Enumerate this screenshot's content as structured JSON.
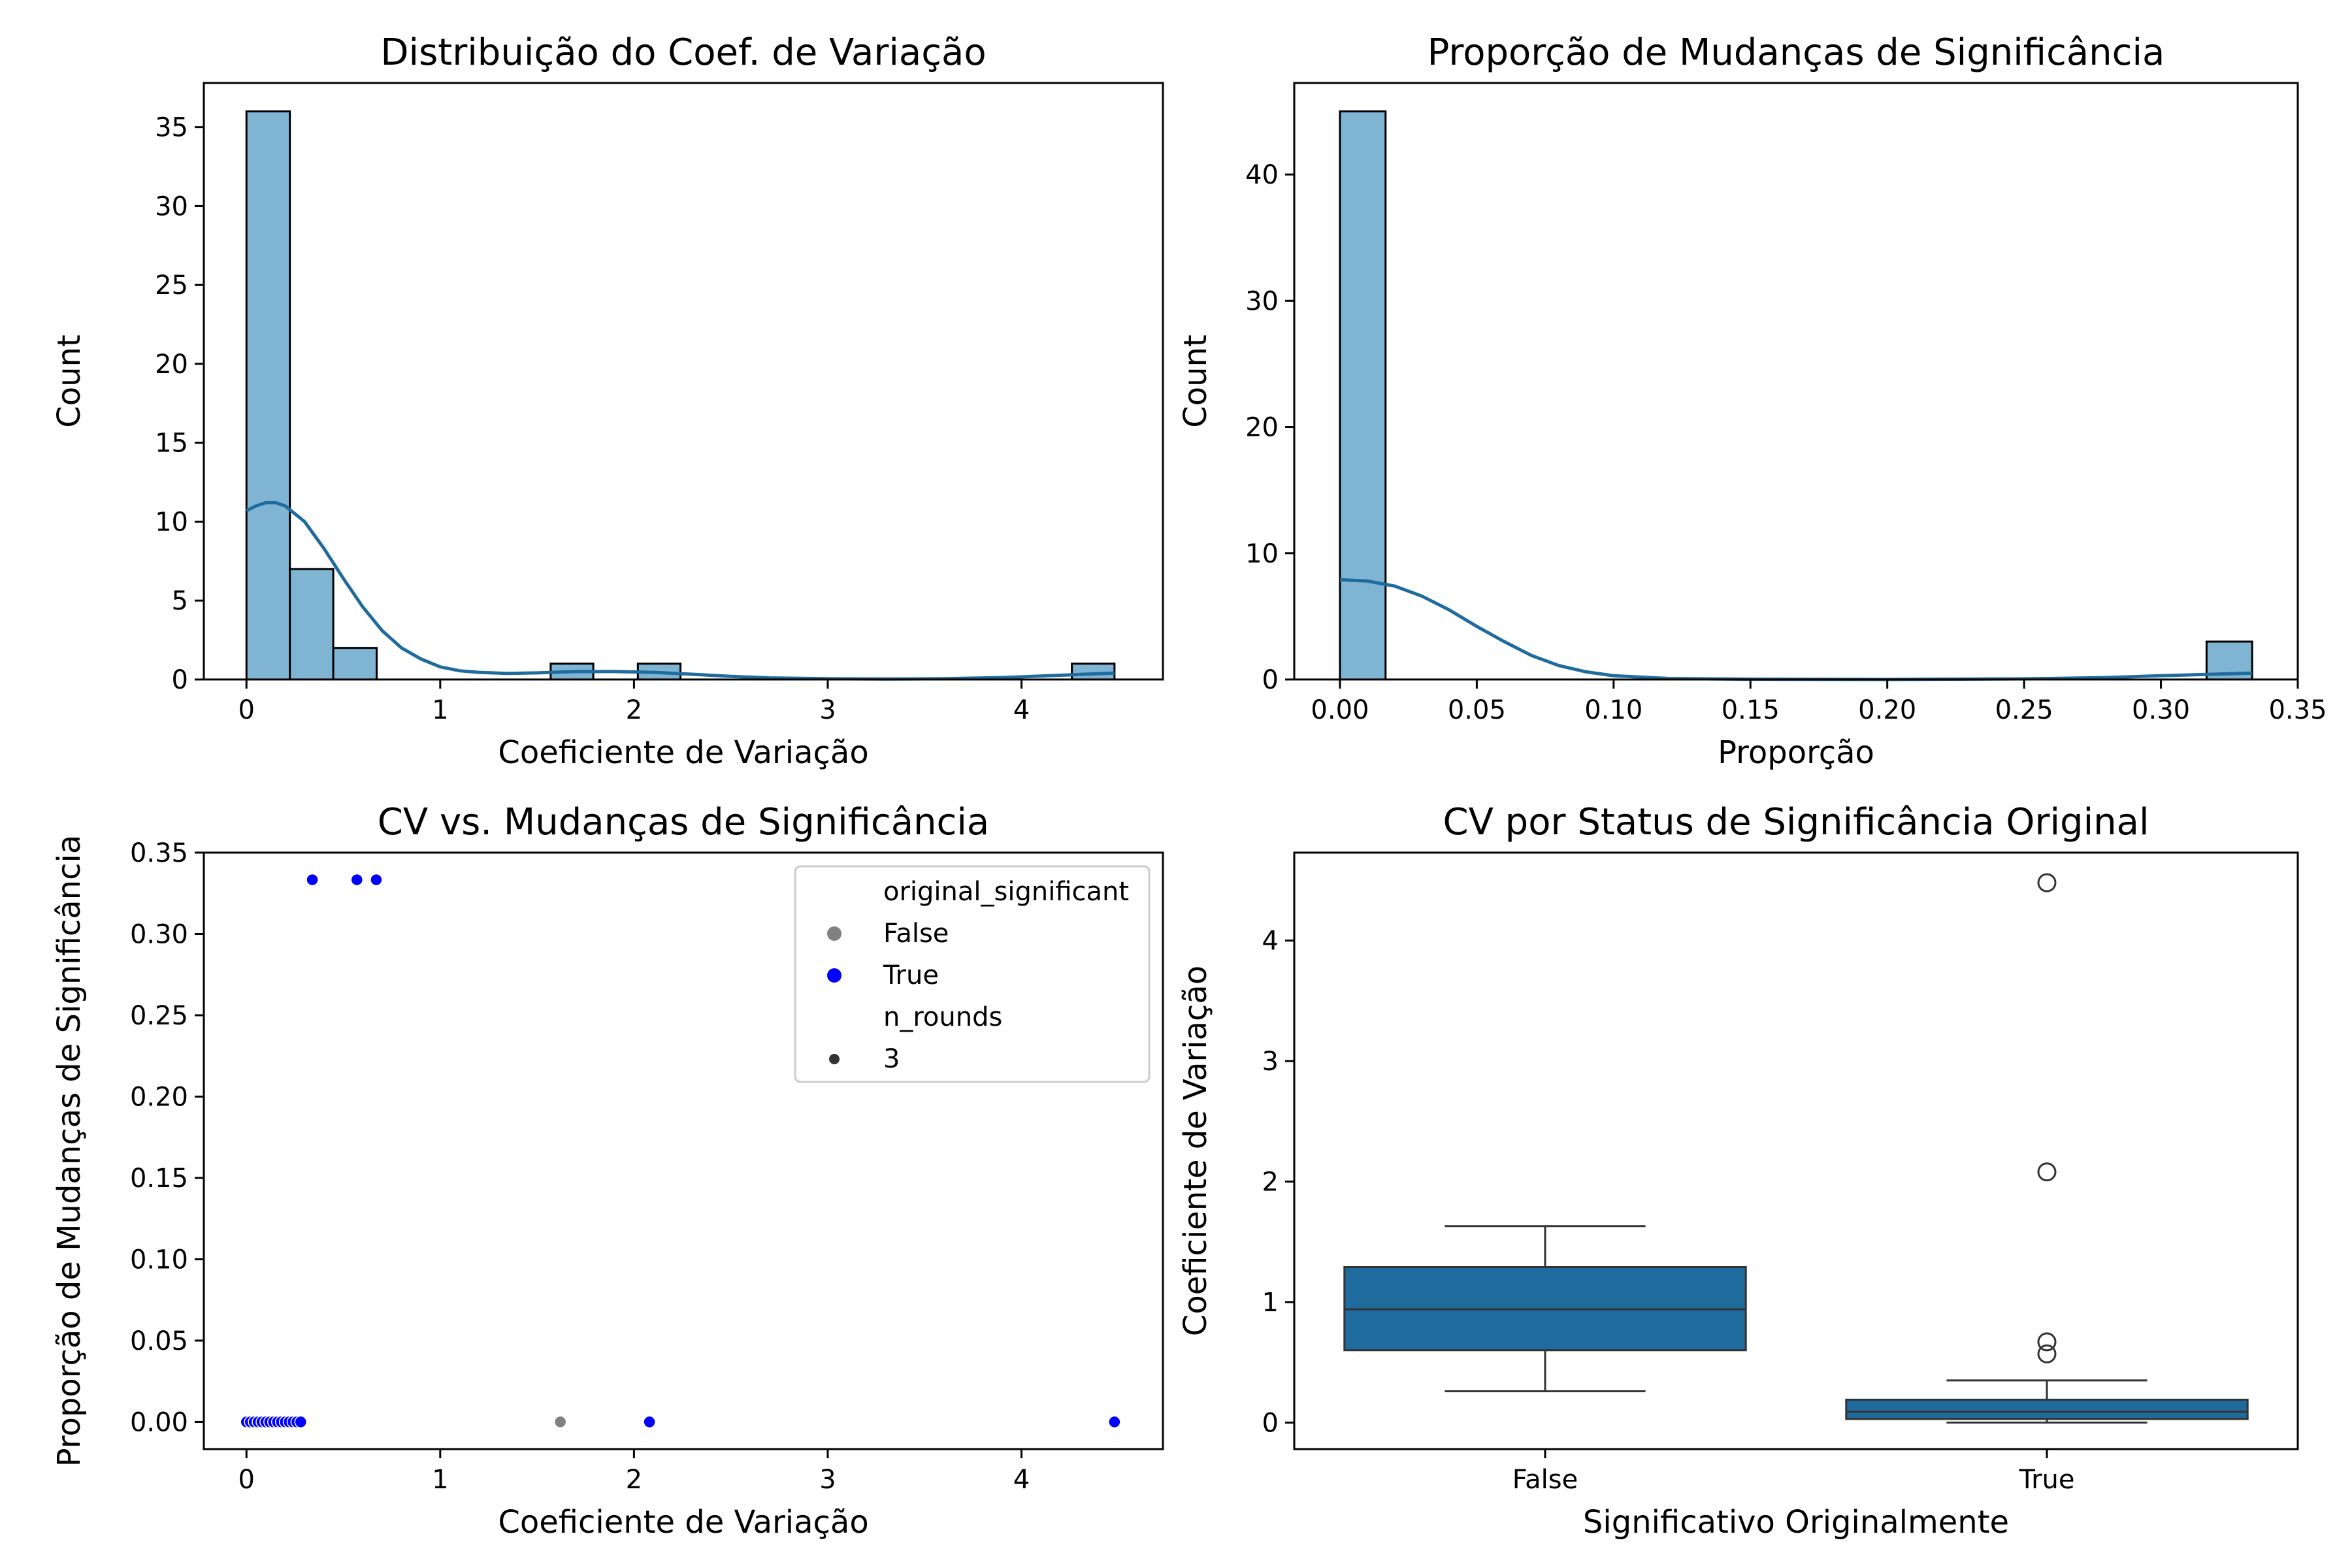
{
  "chart_data": [
    {
      "type": "histogram",
      "title": "Distribuição do Coef. de Variação",
      "xlabel": "Coeficiente de Variação",
      "ylabel": "Count",
      "xlim": [
        -0.22,
        4.73
      ],
      "ylim": [
        0,
        37.8
      ],
      "xticks": [
        0,
        1,
        2,
        3,
        4
      ],
      "yticks": [
        0,
        5,
        10,
        15,
        20,
        25,
        30,
        35
      ],
      "bins": [
        {
          "x0": 0.0,
          "x1": 0.224,
          "count": 36
        },
        {
          "x0": 0.224,
          "x1": 0.448,
          "count": 7
        },
        {
          "x0": 0.448,
          "x1": 0.672,
          "count": 2
        },
        {
          "x0": 1.57,
          "x1": 1.79,
          "count": 1
        },
        {
          "x0": 2.02,
          "x1": 2.24,
          "count": 1
        },
        {
          "x0": 4.26,
          "x1": 4.48,
          "count": 1
        }
      ],
      "kde": [
        [
          0,
          10.7
        ],
        [
          0.05,
          11.0
        ],
        [
          0.1,
          11.2
        ],
        [
          0.15,
          11.2
        ],
        [
          0.2,
          11.0
        ],
        [
          0.3,
          10.0
        ],
        [
          0.4,
          8.3
        ],
        [
          0.5,
          6.4
        ],
        [
          0.6,
          4.6
        ],
        [
          0.7,
          3.1
        ],
        [
          0.8,
          2.0
        ],
        [
          0.9,
          1.3
        ],
        [
          1.0,
          0.8
        ],
        [
          1.1,
          0.55
        ],
        [
          1.2,
          0.45
        ],
        [
          1.35,
          0.38
        ],
        [
          1.5,
          0.42
        ],
        [
          1.7,
          0.5
        ],
        [
          1.9,
          0.5
        ],
        [
          2.1,
          0.45
        ],
        [
          2.3,
          0.33
        ],
        [
          2.5,
          0.2
        ],
        [
          2.7,
          0.1
        ],
        [
          3.0,
          0.05
        ],
        [
          3.3,
          0.03
        ],
        [
          3.6,
          0.05
        ],
        [
          3.9,
          0.12
        ],
        [
          4.1,
          0.22
        ],
        [
          4.3,
          0.32
        ],
        [
          4.48,
          0.4
        ]
      ]
    },
    {
      "type": "histogram",
      "title": "Proporção de Mudanças de Significância",
      "xlabel": "Proporção",
      "ylabel": "Count",
      "xlim": [
        -0.0167,
        0.35
      ],
      "ylim": [
        0,
        47.25
      ],
      "xticks": [
        0.0,
        0.05,
        0.1,
        0.15,
        0.2,
        0.25,
        0.3,
        0.35
      ],
      "xtick_labels": [
        "0.00",
        "0.05",
        "0.10",
        "0.15",
        "0.20",
        "0.25",
        "0.30",
        "0.35"
      ],
      "yticks": [
        0,
        10,
        20,
        30,
        40
      ],
      "bins": [
        {
          "x0": 0.0,
          "x1": 0.01667,
          "count": 45
        },
        {
          "x0": 0.31667,
          "x1": 0.33333,
          "count": 3
        }
      ],
      "kde": [
        [
          0,
          7.9
        ],
        [
          0.01,
          7.8
        ],
        [
          0.02,
          7.4
        ],
        [
          0.03,
          6.6
        ],
        [
          0.04,
          5.5
        ],
        [
          0.05,
          4.2
        ],
        [
          0.06,
          3.0
        ],
        [
          0.07,
          1.9
        ],
        [
          0.08,
          1.1
        ],
        [
          0.09,
          0.6
        ],
        [
          0.1,
          0.3
        ],
        [
          0.12,
          0.08
        ],
        [
          0.15,
          0.02
        ],
        [
          0.2,
          0.0
        ],
        [
          0.25,
          0.05
        ],
        [
          0.28,
          0.15
        ],
        [
          0.3,
          0.3
        ],
        [
          0.3333,
          0.5
        ]
      ]
    },
    {
      "type": "scatter",
      "title": "CV vs. Mudanças de Significância",
      "xlabel": "Coeficiente de Variação",
      "ylabel": "Proporção de Mudanças de Significância",
      "xlim": [
        -0.22,
        4.73
      ],
      "ylim": [
        -0.0167,
        0.35
      ],
      "xticks": [
        0,
        1,
        2,
        3,
        4
      ],
      "yticks": [
        0.0,
        0.05,
        0.1,
        0.15,
        0.2,
        0.25,
        0.3,
        0.35
      ],
      "ytick_labels": [
        "0.00",
        "0.05",
        "0.10",
        "0.15",
        "0.20",
        "0.25",
        "0.30",
        "0.35"
      ],
      "legend": {
        "position": "top-right",
        "hue_title": "original_significant",
        "hue_items": [
          {
            "label": "False",
            "color": "#808080"
          },
          {
            "label": "True",
            "color": "#0000ff"
          }
        ],
        "size_title": "n_rounds",
        "size_items": [
          {
            "label": "3",
            "color": "#333333"
          }
        ]
      },
      "series": [
        {
          "name": "False",
          "color": "#808080",
          "points": [
            [
              1.62,
              0
            ]
          ]
        },
        {
          "name": "True",
          "color": "#0000ff",
          "points": [
            [
              0.0,
              0
            ],
            [
              0.02,
              0
            ],
            [
              0.04,
              0
            ],
            [
              0.06,
              0
            ],
            [
              0.08,
              0
            ],
            [
              0.1,
              0
            ],
            [
              0.12,
              0
            ],
            [
              0.14,
              0
            ],
            [
              0.16,
              0
            ],
            [
              0.18,
              0
            ],
            [
              0.2,
              0
            ],
            [
              0.22,
              0
            ],
            [
              0.24,
              0
            ],
            [
              0.26,
              0
            ],
            [
              0.28,
              0
            ],
            [
              2.08,
              0
            ],
            [
              4.48,
              0
            ],
            [
              0.34,
              0.3333
            ],
            [
              0.57,
              0.3333
            ],
            [
              0.67,
              0.3333
            ]
          ]
        }
      ]
    },
    {
      "type": "box",
      "title": "CV por Status de Significância Original",
      "xlabel": "Significativo Originalmente",
      "ylabel": "Coeficiente de Variação",
      "ylim": [
        -0.22,
        4.73
      ],
      "yticks": [
        0,
        1,
        2,
        3,
        4
      ],
      "color": "#1f6b9e",
      "boxes": [
        {
          "label": "False",
          "whisker_low": 0.26,
          "q1": 0.6,
          "median": 0.94,
          "q3": 1.29,
          "whisker_high": 1.63,
          "outliers": []
        },
        {
          "label": "True",
          "whisker_low": 0.0,
          "q1": 0.03,
          "median": 0.09,
          "q3": 0.19,
          "whisker_high": 0.35,
          "outliers": [
            0.57,
            0.67,
            2.08,
            4.48
          ]
        }
      ]
    }
  ]
}
